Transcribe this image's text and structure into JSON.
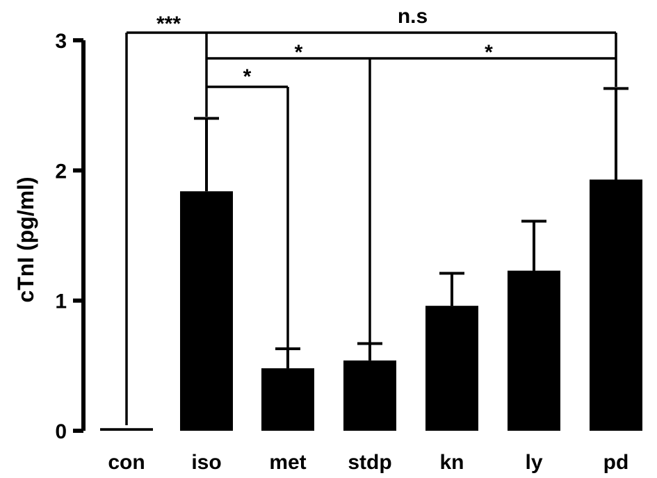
{
  "chart_data": {
    "type": "bar",
    "categories": [
      "con",
      "iso",
      "met",
      "stdp",
      "kn",
      "ly",
      "pd"
    ],
    "values": [
      0.02,
      1.84,
      0.48,
      0.54,
      0.96,
      1.23,
      1.93
    ],
    "errors": [
      0.0,
      0.56,
      0.15,
      0.13,
      0.25,
      0.38,
      0.7
    ],
    "ylabel": "cTnI (pg/ml)",
    "ylim": [
      0,
      3
    ],
    "yticks": [
      "0",
      "1",
      "2",
      "3"
    ],
    "bar_color": "#000000",
    "grid": false,
    "significance": [
      {
        "from": "con",
        "to": "iso",
        "label": "***"
      },
      {
        "from": "iso",
        "to": "pd",
        "label": "n.s"
      },
      {
        "from": "iso",
        "to": "stdp",
        "label": "*"
      },
      {
        "from": "stdp",
        "to": "pd",
        "label": "*"
      },
      {
        "from": "iso",
        "to": "met",
        "label": "*"
      }
    ]
  }
}
